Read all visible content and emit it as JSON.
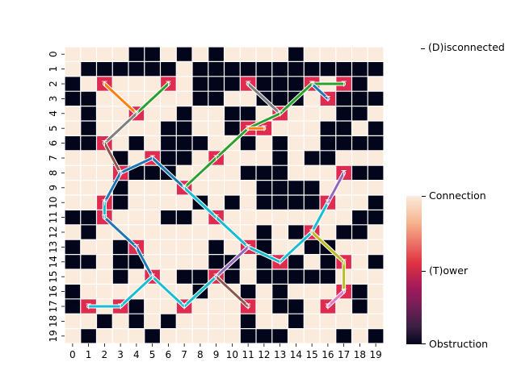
{
  "chart_data": {
    "type": "heatmap",
    "title": "",
    "xlabel": "",
    "ylabel": "",
    "x_ticks": [
      "0",
      "1",
      "2",
      "3",
      "4",
      "5",
      "6",
      "7",
      "8",
      "9",
      "10",
      "11",
      "12",
      "13",
      "14",
      "15",
      "16",
      "17",
      "18",
      "19"
    ],
    "y_ticks": [
      "0",
      "1",
      "2",
      "3",
      "4",
      "5",
      "6",
      "7",
      "8",
      "9",
      "10",
      "11",
      "12",
      "13",
      "14",
      "15",
      "16",
      "17",
      "18",
      "19"
    ],
    "grid_size": 20,
    "obstructions": [
      [
        4,
        0
      ],
      [
        5,
        0
      ],
      [
        7,
        0
      ],
      [
        9,
        0
      ],
      [
        14,
        0
      ],
      [
        1,
        1
      ],
      [
        2,
        1
      ],
      [
        3,
        1
      ],
      [
        4,
        1
      ],
      [
        5,
        1
      ],
      [
        6,
        1
      ],
      [
        8,
        1
      ],
      [
        9,
        1
      ],
      [
        10,
        1
      ],
      [
        11,
        1
      ],
      [
        12,
        1
      ],
      [
        13,
        1
      ],
      [
        14,
        1
      ],
      [
        15,
        1
      ],
      [
        16,
        1
      ],
      [
        17,
        1
      ],
      [
        18,
        1
      ],
      [
        19,
        1
      ],
      [
        0,
        2
      ],
      [
        8,
        2
      ],
      [
        9,
        2
      ],
      [
        10,
        2
      ],
      [
        12,
        2
      ],
      [
        13,
        2
      ],
      [
        14,
        2
      ],
      [
        18,
        2
      ],
      [
        0,
        3
      ],
      [
        1,
        3
      ],
      [
        8,
        3
      ],
      [
        9,
        3
      ],
      [
        12,
        3
      ],
      [
        13,
        3
      ],
      [
        14,
        3
      ],
      [
        16,
        3
      ],
      [
        17,
        3
      ],
      [
        18,
        3
      ],
      [
        19,
        3
      ],
      [
        1,
        4
      ],
      [
        7,
        4
      ],
      [
        10,
        4
      ],
      [
        11,
        4
      ],
      [
        13,
        4
      ],
      [
        17,
        4
      ],
      [
        18,
        4
      ],
      [
        1,
        5
      ],
      [
        6,
        5
      ],
      [
        7,
        5
      ],
      [
        10,
        5
      ],
      [
        11,
        5
      ],
      [
        16,
        5
      ],
      [
        17,
        5
      ],
      [
        19,
        5
      ],
      [
        0,
        6
      ],
      [
        1,
        6
      ],
      [
        4,
        6
      ],
      [
        6,
        6
      ],
      [
        7,
        6
      ],
      [
        8,
        6
      ],
      [
        11,
        6
      ],
      [
        13,
        6
      ],
      [
        16,
        6
      ],
      [
        17,
        6
      ],
      [
        18,
        6
      ],
      [
        19,
        6
      ],
      [
        3,
        7
      ],
      [
        6,
        7
      ],
      [
        7,
        7
      ],
      [
        13,
        7
      ],
      [
        15,
        7
      ],
      [
        16,
        7
      ],
      [
        3,
        8
      ],
      [
        4,
        8
      ],
      [
        5,
        8
      ],
      [
        6,
        8
      ],
      [
        11,
        8
      ],
      [
        12,
        8
      ],
      [
        13,
        8
      ],
      [
        18,
        8
      ],
      [
        19,
        8
      ],
      [
        3,
        9
      ],
      [
        12,
        9
      ],
      [
        13,
        9
      ],
      [
        14,
        9
      ],
      [
        15,
        9
      ],
      [
        3,
        10
      ],
      [
        8,
        10
      ],
      [
        10,
        10
      ],
      [
        12,
        10
      ],
      [
        13,
        10
      ],
      [
        14,
        10
      ],
      [
        15,
        10
      ],
      [
        19,
        10
      ],
      [
        0,
        11
      ],
      [
        1,
        11
      ],
      [
        6,
        11
      ],
      [
        7,
        11
      ],
      [
        18,
        11
      ],
      [
        19,
        11
      ],
      [
        1,
        12
      ],
      [
        12,
        12
      ],
      [
        14,
        12
      ],
      [
        17,
        12
      ],
      [
        18,
        12
      ],
      [
        0,
        13
      ],
      [
        3,
        13
      ],
      [
        4,
        13
      ],
      [
        9,
        13
      ],
      [
        11,
        13
      ],
      [
        12,
        13
      ],
      [
        15,
        13
      ],
      [
        16,
        13
      ],
      [
        0,
        14
      ],
      [
        1,
        14
      ],
      [
        3,
        14
      ],
      [
        4,
        14
      ],
      [
        9,
        14
      ],
      [
        10,
        14
      ],
      [
        12,
        14
      ],
      [
        14,
        14
      ],
      [
        16,
        14
      ],
      [
        19,
        14
      ],
      [
        3,
        15
      ],
      [
        5,
        15
      ],
      [
        7,
        15
      ],
      [
        8,
        15
      ],
      [
        9,
        15
      ],
      [
        10,
        15
      ],
      [
        12,
        15
      ],
      [
        13,
        15
      ],
      [
        14,
        15
      ],
      [
        15,
        15
      ],
      [
        16,
        15
      ],
      [
        0,
        16
      ],
      [
        8,
        16
      ],
      [
        11,
        16
      ],
      [
        13,
        16
      ],
      [
        18,
        16
      ],
      [
        0,
        17
      ],
      [
        4,
        17
      ],
      [
        13,
        17
      ],
      [
        14,
        17
      ],
      [
        18,
        17
      ],
      [
        2,
        18
      ],
      [
        4,
        18
      ],
      [
        6,
        18
      ],
      [
        11,
        18
      ],
      [
        14,
        18
      ],
      [
        1,
        19
      ],
      [
        5,
        19
      ],
      [
        11,
        19
      ],
      [
        12,
        19
      ],
      [
        13,
        19
      ],
      [
        17,
        19
      ],
      [
        19,
        19
      ]
    ],
    "towers": [
      [
        2,
        2
      ],
      [
        6,
        2
      ],
      [
        11,
        2
      ],
      [
        15,
        2
      ],
      [
        17,
        2
      ],
      [
        16,
        3
      ],
      [
        4,
        4
      ],
      [
        13,
        4
      ],
      [
        11,
        5
      ],
      [
        12,
        5
      ],
      [
        2,
        6
      ],
      [
        5,
        7
      ],
      [
        9,
        7
      ],
      [
        3,
        8
      ],
      [
        17,
        8
      ],
      [
        7,
        9
      ],
      [
        2,
        10
      ],
      [
        16,
        10
      ],
      [
        2,
        11
      ],
      [
        9,
        11
      ],
      [
        15,
        12
      ],
      [
        4,
        13
      ],
      [
        11,
        13
      ],
      [
        13,
        14
      ],
      [
        17,
        14
      ],
      [
        5,
        15
      ],
      [
        9,
        15
      ],
      [
        17,
        16
      ],
      [
        1,
        17
      ],
      [
        3,
        17
      ],
      [
        7,
        17
      ],
      [
        11,
        17
      ],
      [
        16,
        17
      ]
    ],
    "tower_marker": "T",
    "connections": [
      {
        "color": "#ff7f0e",
        "points": [
          [
            2,
            2
          ],
          [
            4,
            4
          ]
        ]
      },
      {
        "color": "#2ca02c",
        "points": [
          [
            6,
            2
          ],
          [
            4,
            4
          ]
        ]
      },
      {
        "color": "#7f7f7f",
        "points": [
          [
            11,
            2
          ],
          [
            13,
            4
          ]
        ]
      },
      {
        "color": "#2ca02c",
        "points": [
          [
            15,
            2
          ],
          [
            17,
            2
          ]
        ]
      },
      {
        "color": "#1f77b4",
        "points": [
          [
            15,
            2
          ],
          [
            16,
            3
          ]
        ]
      },
      {
        "color": "#2ca02c",
        "points": [
          [
            7,
            9
          ],
          [
            11,
            5
          ],
          [
            13,
            4
          ],
          [
            15,
            2
          ]
        ]
      },
      {
        "color": "#ff7f0e",
        "points": [
          [
            11,
            5
          ],
          [
            12,
            5
          ]
        ]
      },
      {
        "color": "#7f7f7f",
        "points": [
          [
            4,
            4
          ],
          [
            2,
            6
          ]
        ]
      },
      {
        "color": "#8c564b",
        "points": [
          [
            2,
            6
          ],
          [
            3,
            8
          ]
        ]
      },
      {
        "color": "#1f77b4",
        "points": [
          [
            3,
            8
          ],
          [
            5,
            7
          ],
          [
            7,
            9
          ]
        ]
      },
      {
        "color": "#17becf",
        "points": [
          [
            7,
            9
          ],
          [
            9,
            11
          ],
          [
            11,
            13
          ],
          [
            13,
            14
          ],
          [
            15,
            12
          ],
          [
            16,
            10
          ]
        ]
      },
      {
        "color": "#9467bd",
        "points": [
          [
            17,
            8
          ],
          [
            16,
            10
          ]
        ]
      },
      {
        "color": "#1f77b4",
        "points": [
          [
            3,
            8
          ],
          [
            2,
            10
          ],
          [
            2,
            11
          ],
          [
            4,
            13
          ],
          [
            5,
            15
          ]
        ]
      },
      {
        "color": "#17becf",
        "points": [
          [
            5,
            15
          ],
          [
            7,
            17
          ],
          [
            9,
            15
          ],
          [
            11,
            13
          ]
        ]
      },
      {
        "color": "#17becf",
        "points": [
          [
            2,
            10
          ],
          [
            2,
            11
          ]
        ]
      },
      {
        "color": "#9467bd",
        "points": [
          [
            9,
            15
          ],
          [
            11,
            13
          ]
        ]
      },
      {
        "color": "#8c564b",
        "points": [
          [
            9,
            15
          ],
          [
            11,
            17
          ]
        ]
      },
      {
        "color": "#bcbd22",
        "points": [
          [
            15,
            12
          ],
          [
            17,
            14
          ],
          [
            17,
            16
          ]
        ]
      },
      {
        "color": "#e377c2",
        "points": [
          [
            17,
            16
          ],
          [
            16,
            17
          ]
        ]
      },
      {
        "color": "#17becf",
        "points": [
          [
            1,
            17
          ],
          [
            3,
            17
          ],
          [
            5,
            15
          ]
        ]
      }
    ],
    "legend": {
      "items": [
        "(D)isconnected"
      ],
      "placement": "upper-right"
    },
    "colorbar": {
      "labels": [
        "Connection",
        "(T)ower",
        "Obstruction"
      ],
      "placement": "right"
    },
    "grid": true,
    "colors": {
      "obstruction": "#03051a",
      "connection": "#faebdd",
      "tower": "#dd2c4f",
      "grid_line": "#ffffff"
    }
  }
}
